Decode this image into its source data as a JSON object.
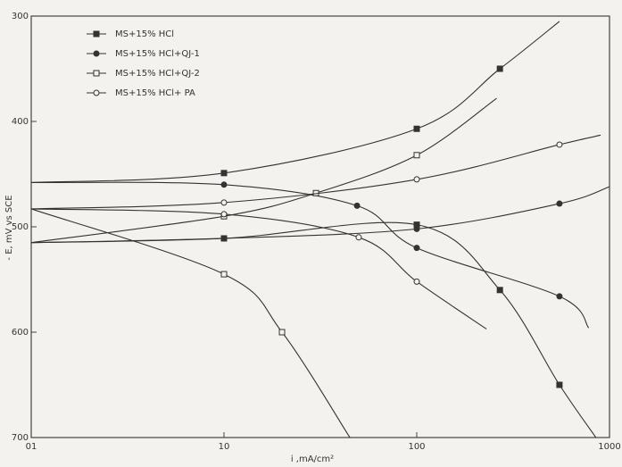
{
  "chart_data": {
    "type": "line",
    "xlabel": "i ,mA/cm²",
    "ylabel": "- E, mV vs SCE",
    "xscale": "log",
    "xlim": [
      1,
      1000
    ],
    "xticks": [
      {
        "value": 1,
        "label": "01"
      },
      10,
      100,
      1000
    ],
    "ylim": [
      300,
      700
    ],
    "yticks": [
      300,
      400,
      500,
      600,
      700
    ],
    "yinverted": true,
    "legend": "upper left",
    "series": [
      {
        "name": "MS+15% HCl",
        "color": "#333333",
        "marker": "square",
        "filled": true,
        "x": [
          1,
          10,
          100,
          270,
          550,
          null,
          1,
          10,
          100,
          270,
          550,
          850
        ],
        "values": [
          458,
          449,
          407,
          350,
          305,
          null,
          515,
          511,
          498,
          560,
          650,
          700
        ]
      },
      {
        "name": "MS+15% HCl+QJ-1",
        "color": "#333333",
        "marker": "circle",
        "filled": true,
        "x": [
          1,
          10,
          100,
          550,
          1000,
          null,
          1,
          10,
          49,
          100,
          550,
          780
        ],
        "values": [
          515,
          511,
          502,
          478,
          462,
          null,
          458,
          460,
          480,
          520,
          566,
          596
        ]
      },
      {
        "name": "MS+15% HCl+QJ-2",
        "color": "#333333",
        "marker": "square",
        "filled": false,
        "x": [
          1,
          10,
          30,
          100,
          260,
          null,
          1,
          10,
          20,
          45
        ],
        "values": [
          515,
          490,
          468,
          432,
          378,
          null,
          483,
          545,
          600,
          700
        ]
      },
      {
        "name": "MS+15% HCl+ PA",
        "color": "#333333",
        "marker": "circle",
        "filled": false,
        "x": [
          1,
          10,
          100,
          550,
          900,
          null,
          1,
          10,
          50,
          100,
          230
        ],
        "values": [
          483,
          477,
          455,
          422,
          413,
          null,
          483,
          488,
          510,
          552,
          597
        ]
      }
    ]
  }
}
